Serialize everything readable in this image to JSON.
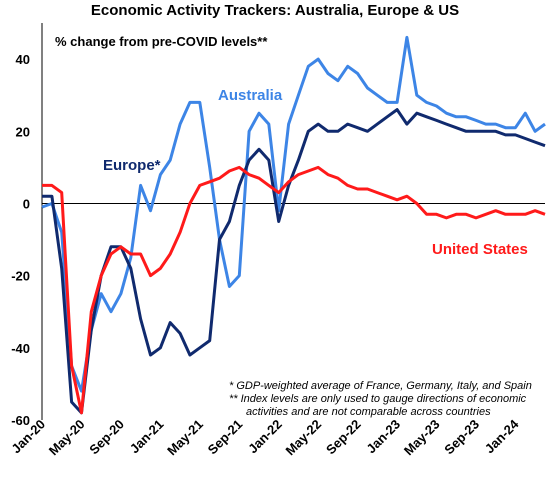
{
  "chart_data": {
    "type": "line",
    "title": "Economic Activity Trackers: Australia, Europe & US",
    "subtitle": "% change from pre-COVID levels**",
    "ylim": [
      -60,
      50
    ],
    "yticks": [
      40,
      20,
      0,
      -20,
      -40,
      -60
    ],
    "grid": false,
    "xticks": [
      "Jan-20",
      "May-20",
      "Sep-20",
      "Jan-21",
      "May-21",
      "Sep-21",
      "Jan-22",
      "May-22",
      "Sep-22",
      "Jan-23",
      "May-23",
      "Sep-23",
      "Jan-24"
    ],
    "x": [
      "Jan-20",
      "Feb-20",
      "Mar-20",
      "Apr-20",
      "May-20",
      "Jun-20",
      "Jul-20",
      "Aug-20",
      "Sep-20",
      "Oct-20",
      "Nov-20",
      "Dec-20",
      "Jan-21",
      "Feb-21",
      "Mar-21",
      "Apr-21",
      "May-21",
      "Jun-21",
      "Jul-21",
      "Aug-21",
      "Sep-21",
      "Oct-21",
      "Nov-21",
      "Dec-21",
      "Jan-22",
      "Feb-22",
      "Mar-22",
      "Apr-22",
      "May-22",
      "Jun-22",
      "Jul-22",
      "Aug-22",
      "Sep-22",
      "Oct-22",
      "Nov-22",
      "Dec-22",
      "Jan-23",
      "Feb-23",
      "Mar-23",
      "Apr-23",
      "May-23",
      "Jun-23",
      "Jul-23",
      "Aug-23",
      "Sep-23",
      "Oct-23",
      "Nov-23",
      "Dec-23",
      "Jan-24",
      "Feb-24",
      "Mar-24",
      "Apr-24"
    ],
    "series": [
      {
        "name": "Australia",
        "color": "#3d85e6",
        "values": [
          -1,
          0,
          -8,
          -45,
          -52,
          -35,
          -25,
          -30,
          -25,
          -15,
          5,
          -2,
          8,
          12,
          22,
          28,
          28,
          10,
          -10,
          -23,
          -20,
          20,
          25,
          22,
          -2,
          22,
          30,
          38,
          40,
          36,
          34,
          38,
          36,
          32,
          30,
          28,
          28,
          46,
          30,
          28,
          27,
          25,
          24,
          24,
          23,
          22,
          22,
          21,
          21,
          25,
          20,
          22
        ]
      },
      {
        "name": "Europe*",
        "color": "#102a6e",
        "values": [
          2,
          2,
          -18,
          -55,
          -58,
          -35,
          -20,
          -12,
          -12,
          -18,
          -32,
          -42,
          -40,
          -33,
          -36,
          -42,
          -40,
          -38,
          -10,
          -5,
          5,
          12,
          15,
          12,
          -5,
          5,
          12,
          20,
          22,
          20,
          20,
          22,
          21,
          20,
          22,
          24,
          26,
          22,
          25,
          24,
          23,
          22,
          21,
          20,
          20,
          20,
          20,
          19,
          19,
          18,
          17,
          16
        ]
      },
      {
        "name": "United States",
        "color": "#ff1a1a",
        "values": [
          5,
          5,
          3,
          -45,
          -58,
          -30,
          -20,
          -14,
          -12,
          -14,
          -14,
          -20,
          -18,
          -14,
          -8,
          0,
          5,
          6,
          7,
          9,
          10,
          8,
          7,
          5,
          3,
          6,
          8,
          9,
          10,
          8,
          7,
          5,
          4,
          4,
          3,
          2,
          1,
          2,
          0,
          -3,
          -3,
          -4,
          -3,
          -3,
          -4,
          -3,
          -2,
          -3,
          -3,
          -3,
          -2,
          -3
        ]
      }
    ],
    "series_labels": {
      "australia": "Australia",
      "europe": "Europe*",
      "us": "United States"
    },
    "notes": [
      "* GDP-weighted average of France, Germany, Italy, and Spain",
      "** Index levels are only used to gauge directions of economic",
      "activities and are not comparable across countries"
    ]
  }
}
